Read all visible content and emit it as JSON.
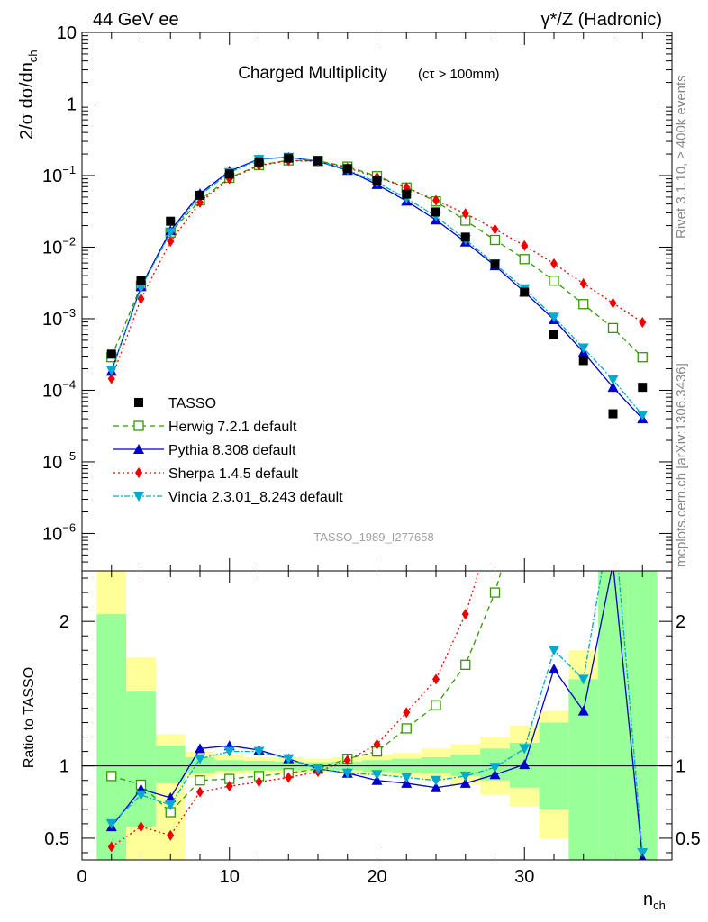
{
  "header": {
    "left": "44 GeV ee",
    "right": "γ*/Z (Hadronic)"
  },
  "main_panel": {
    "title": "Charged Multiplicity",
    "title_suffix": "(cτ > 100mm)",
    "ylabel": "2/σ dσ/dn",
    "ylabel_sub": "ch",
    "analysis_tag": "TASSO_1989_I277658"
  },
  "ratio_panel": {
    "ylabel": "Ratio to TASSO",
    "xlabel": "n",
    "xlabel_sub": "ch"
  },
  "side_labels": {
    "rivet": "Rivet 3.1.10, ≥ 400k events",
    "mcplots": "mcplots.cern.ch [arXiv:1306.3436]"
  },
  "legend_placement": "lower-left",
  "chart_data": {
    "type": "scatter",
    "x_range": [
      0,
      40
    ],
    "y_range_main": [
      3e-07,
      10
    ],
    "y_scale_main": "log",
    "y_range_ratio": [
      0.35,
      2.35
    ],
    "x_ticks": [
      0,
      10,
      20,
      30
    ],
    "y_ticks_main": [
      {
        "value": 1e-06,
        "base": "10",
        "exp": "−6"
      },
      {
        "value": 1e-05,
        "base": "10",
        "exp": "−5"
      },
      {
        "value": 0.0001,
        "base": "10",
        "exp": "−4"
      },
      {
        "value": 0.001,
        "base": "10",
        "exp": "−3"
      },
      {
        "value": 0.01,
        "base": "10",
        "exp": "−2"
      },
      {
        "value": 0.1,
        "base": "10",
        "exp": "−1"
      },
      {
        "value": 1,
        "base": "1",
        "exp": ""
      },
      {
        "value": 10,
        "base": "10",
        "exp": ""
      }
    ],
    "y_ticks_ratio": [
      {
        "value": 0.5,
        "label": "0.5"
      },
      {
        "value": 1,
        "label": "1"
      },
      {
        "value": 2,
        "label": "2"
      }
    ],
    "data": {
      "name": "TASSO",
      "x": [
        2,
        4,
        6,
        8,
        10,
        12,
        14,
        16,
        18,
        20,
        22,
        24,
        26,
        28,
        30,
        32,
        34,
        36,
        38
      ],
      "y": [
        0.00032,
        0.0034,
        0.023,
        0.053,
        0.105,
        0.155,
        0.175,
        0.162,
        0.125,
        0.084,
        0.055,
        0.031,
        0.0138,
        0.0058,
        0.00235,
        0.0006,
        0.00026,
        4.7e-05,
        0.00011
      ],
      "band_edges": [
        1,
        3,
        5,
        7,
        9,
        11,
        13,
        15,
        17,
        19,
        21,
        23,
        25,
        27,
        29,
        31,
        33,
        35,
        37,
        39
      ],
      "band_stat": [
        [
          0.35,
          2.05
        ],
        [
          0.58,
          1.52
        ],
        [
          0.88,
          1.14
        ],
        [
          0.95,
          1.06
        ],
        [
          0.965,
          1.04
        ],
        [
          0.97,
          1.035
        ],
        [
          0.97,
          1.03
        ],
        [
          0.975,
          1.025
        ],
        [
          0.97,
          1.03
        ],
        [
          0.96,
          1.04
        ],
        [
          0.955,
          1.05
        ],
        [
          0.95,
          1.06
        ],
        [
          0.93,
          1.08
        ],
        [
          0.9,
          1.12
        ],
        [
          0.85,
          1.16
        ],
        [
          0.7,
          1.3
        ],
        [
          0.35,
          1.6
        ],
        [
          0.35,
          2.35
        ],
        [
          0.35,
          2.35
        ]
      ],
      "band_total": [
        [
          0.35,
          2.35
        ],
        [
          0.35,
          1.75
        ],
        [
          0.35,
          1.22
        ],
        [
          0.92,
          1.1
        ],
        [
          0.94,
          1.08
        ],
        [
          0.95,
          1.06
        ],
        [
          0.95,
          1.06
        ],
        [
          0.955,
          1.05
        ],
        [
          0.95,
          1.06
        ],
        [
          0.93,
          1.08
        ],
        [
          0.92,
          1.09
        ],
        [
          0.9,
          1.12
        ],
        [
          0.87,
          1.15
        ],
        [
          0.8,
          1.2
        ],
        [
          0.72,
          1.28
        ],
        [
          0.5,
          1.38
        ],
        [
          0.35,
          1.8
        ],
        [
          0.35,
          2.2
        ],
        [
          0.35,
          2.35
        ]
      ]
    },
    "series": [
      {
        "name": "Herwig 7.2.1 default",
        "color": "#339900",
        "marker": "open-square",
        "dash": "6,4",
        "x": [
          2,
          4,
          6,
          8,
          10,
          12,
          14,
          16,
          18,
          20,
          22,
          24,
          26,
          28,
          30,
          32,
          34,
          36,
          38
        ],
        "y": [
          0.00029,
          0.0029,
          0.016,
          0.045,
          0.093,
          0.14,
          0.163,
          0.16,
          0.133,
          0.098,
          0.068,
          0.0435,
          0.0235,
          0.0126,
          0.0068,
          0.0034,
          0.0016,
          0.00074,
          0.00029
        ],
        "ratio": [
          0.93,
          0.87,
          0.68,
          0.9,
          0.91,
          0.93,
          0.95,
          0.98,
          1.05,
          1.1,
          1.26,
          1.42,
          1.7,
          2.2,
          2.9,
          5.7,
          6.2,
          15.7,
          2.6
        ]
      },
      {
        "name": "Pythia 8.308 default",
        "color": "#0000cc",
        "marker": "filled-triangle-up",
        "dash": "",
        "x": [
          2,
          4,
          6,
          8,
          10,
          12,
          14,
          16,
          18,
          20,
          22,
          24,
          26,
          28,
          30,
          32,
          34,
          36,
          38
        ],
        "y": [
          0.000185,
          0.0028,
          0.017,
          0.056,
          0.115,
          0.17,
          0.18,
          0.158,
          0.118,
          0.075,
          0.044,
          0.024,
          0.0118,
          0.0055,
          0.00236,
          0.00097,
          0.00034,
          0.00011,
          4e-05
        ],
        "ratio": [
          0.58,
          0.84,
          0.78,
          1.12,
          1.14,
          1.11,
          1.05,
          0.98,
          0.95,
          0.9,
          0.88,
          0.85,
          0.88,
          0.94,
          1.01,
          1.67,
          1.38,
          2.4,
          0.36
        ]
      },
      {
        "name": "Sherpa 1.4.5 default",
        "color": "#ee0000",
        "marker": "filled-diamond",
        "dash": "2,3",
        "x": [
          2,
          4,
          6,
          8,
          10,
          12,
          14,
          16,
          18,
          20,
          22,
          24,
          26,
          28,
          30,
          32,
          34,
          36,
          38
        ],
        "y": [
          0.000145,
          0.0019,
          0.012,
          0.042,
          0.09,
          0.138,
          0.161,
          0.158,
          0.128,
          0.095,
          0.068,
          0.045,
          0.0295,
          0.0178,
          0.0105,
          0.0059,
          0.0031,
          0.00165,
          0.00089
        ],
        "ratio": [
          0.44,
          0.58,
          0.52,
          0.82,
          0.86,
          0.89,
          0.92,
          0.96,
          1.04,
          1.15,
          1.37,
          1.6,
          2.05,
          2.7,
          4.2,
          9.5,
          11.6,
          35,
          8.1
        ]
      },
      {
        "name": "Vincia 2.3.01_8.243 default",
        "color": "#00aacc",
        "marker": "filled-triangle-down",
        "dash": "6,2,2,2",
        "x": [
          2,
          4,
          6,
          8,
          10,
          12,
          14,
          16,
          18,
          20,
          22,
          24,
          26,
          28,
          30,
          32,
          34,
          36,
          38
        ],
        "y": [
          0.00019,
          0.0027,
          0.016,
          0.053,
          0.11,
          0.168,
          0.18,
          0.16,
          0.12,
          0.08,
          0.048,
          0.027,
          0.0128,
          0.0058,
          0.00262,
          0.00105,
          0.00039,
          0.00014,
          4.5e-05
        ],
        "ratio": [
          0.6,
          0.8,
          0.73,
          1.05,
          1.1,
          1.1,
          1.05,
          0.98,
          0.95,
          0.94,
          0.92,
          0.9,
          0.93,
          0.99,
          1.12,
          1.8,
          1.6,
          2.8,
          0.4
        ]
      }
    ]
  }
}
